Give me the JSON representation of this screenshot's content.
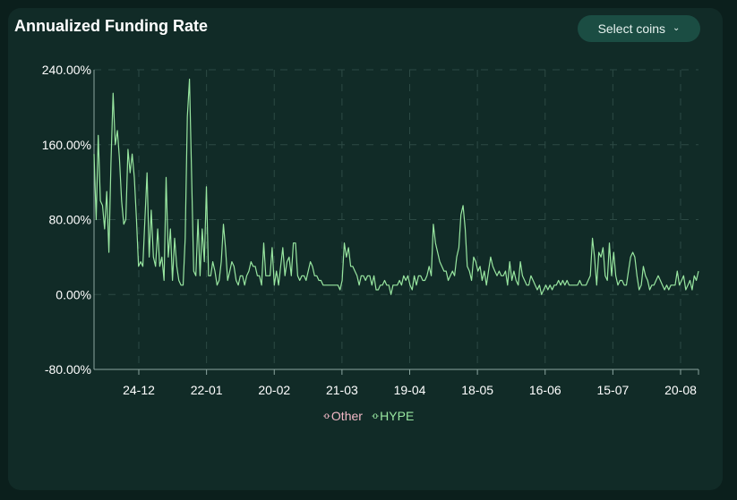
{
  "header": {
    "title": "Annualized Funding Rate",
    "select_label": "Select coins"
  },
  "colors": {
    "background": "#0b1f1c",
    "card": "#112b27",
    "grid": "#2c4a44",
    "other": "#f2b8c6",
    "hype": "#98e6a0",
    "text": "#ffffff"
  },
  "chart_data": {
    "type": "line",
    "title": "Annualized Funding Rate",
    "y_unit": "%",
    "ylim": [
      -80,
      240
    ],
    "y_ticks": [
      -80,
      0,
      80,
      160,
      240
    ],
    "y_tick_labels": [
      "-80.00%",
      "0.00%",
      "80.00%",
      "160.00%",
      "240.00%"
    ],
    "x_tick_labels": [
      "24-12",
      "22-01",
      "20-02",
      "21-03",
      "19-04",
      "18-05",
      "16-06",
      "15-07",
      "20-08"
    ],
    "grid": true,
    "legend_position": "bottom-center",
    "series": [
      {
        "name": "Other",
        "color": "#f2b8c6",
        "values": []
      },
      {
        "name": "HYPE",
        "color": "#98e6a0",
        "values": [
          150,
          80,
          170,
          100,
          95,
          70,
          110,
          45,
          140,
          215,
          160,
          175,
          145,
          100,
          75,
          80,
          155,
          130,
          150,
          125,
          80,
          30,
          35,
          30,
          80,
          130,
          40,
          90,
          40,
          30,
          70,
          30,
          40,
          15,
          125,
          40,
          70,
          15,
          60,
          30,
          15,
          10,
          10,
          60,
          190,
          230,
          130,
          25,
          20,
          80,
          20,
          70,
          35,
          115,
          20,
          20,
          35,
          25,
          10,
          15,
          35,
          75,
          50,
          15,
          25,
          35,
          30,
          15,
          10,
          20,
          20,
          10,
          20,
          25,
          35,
          30,
          30,
          20,
          20,
          10,
          55,
          20,
          20,
          20,
          50,
          10,
          25,
          10,
          30,
          50,
          20,
          35,
          40,
          20,
          55,
          55,
          20,
          15,
          20,
          20,
          15,
          25,
          35,
          30,
          20,
          20,
          15,
          15,
          10,
          10,
          10,
          10,
          10,
          10,
          10,
          10,
          5,
          15,
          55,
          40,
          50,
          30,
          30,
          25,
          20,
          10,
          20,
          20,
          15,
          20,
          20,
          10,
          20,
          5,
          5,
          10,
          10,
          15,
          10,
          10,
          0,
          10,
          10,
          10,
          15,
          10,
          20,
          15,
          20,
          10,
          5,
          20,
          10,
          20,
          20,
          15,
          15,
          20,
          30,
          20,
          75,
          55,
          45,
          35,
          30,
          25,
          25,
          15,
          20,
          25,
          20,
          40,
          50,
          85,
          95,
          70,
          30,
          25,
          15,
          40,
          35,
          25,
          30,
          15,
          25,
          10,
          25,
          40,
          30,
          25,
          20,
          25,
          20,
          20,
          25,
          10,
          35,
          15,
          25,
          15,
          10,
          35,
          20,
          15,
          10,
          10,
          20,
          15,
          10,
          5,
          10,
          0,
          5,
          10,
          5,
          10,
          5,
          10,
          10,
          15,
          10,
          15,
          10,
          15,
          10,
          10,
          10,
          10,
          10,
          15,
          10,
          10,
          10,
          15,
          20,
          60,
          40,
          10,
          45,
          40,
          50,
          20,
          15,
          55,
          20,
          45,
          20,
          10,
          15,
          15,
          10,
          10,
          25,
          40,
          45,
          40,
          20,
          5,
          10,
          30,
          20,
          15,
          5,
          10,
          10,
          15,
          20,
          15,
          10,
          5,
          10,
          5,
          10,
          10,
          10,
          25,
          10,
          15,
          20,
          5,
          10,
          15,
          5,
          20,
          15,
          25
        ]
      }
    ]
  }
}
